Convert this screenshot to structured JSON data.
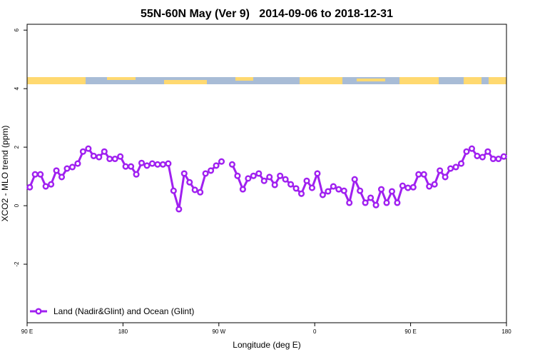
{
  "chart_data": {
    "type": "line",
    "title": "55N-60N May (Ver 9)   2014-09-06 to 2018-12-31",
    "x_label": "Longitude (deg E)",
    "y_label": "XCO2 - MLO trend (ppm)",
    "xlim": [
      90,
      540
    ],
    "ylim": [
      -4,
      6.2
    ],
    "xticks": [
      {
        "value": 90,
        "label": "90 E"
      },
      180,
      {
        "value": 270,
        "label": "90 W"
      },
      {
        "value": 360,
        "label": "0"
      },
      {
        "value": 450,
        "label": "90 E"
      },
      {
        "value": 540,
        "label": "180"
      }
    ],
    "yticks": [
      -2,
      0,
      2,
      4,
      6
    ],
    "legend": "bottom-left",
    "x": [
      92.5,
      97.5,
      102.5,
      107.5,
      112.5,
      117.5,
      122.5,
      127.5,
      132.5,
      137.5,
      142.5,
      147.5,
      152.5,
      157.5,
      162.5,
      167.5,
      172.5,
      177.5,
      182.5,
      187.5,
      192.5,
      197.5,
      202.5,
      207.5,
      212.5,
      217.5,
      222.5,
      227.5,
      232.5,
      237.5,
      242.5,
      247.5,
      252.5,
      257.5,
      262.5,
      267.5,
      272.5,
      277.5,
      282.5,
      287.5,
      292.5,
      297.5,
      302.5,
      307.5,
      312.5,
      317.5,
      322.5,
      327.5,
      332.5,
      337.5,
      342.5,
      347.5,
      352.5,
      357.5,
      362.5,
      367.5,
      372.5,
      377.5,
      382.5,
      387.5,
      392.5,
      397.5,
      402.5,
      407.5,
      412.5,
      417.5,
      422.5,
      427.5,
      432.5,
      437.5,
      442.5,
      447.5,
      452.5,
      457.5,
      462.5,
      467.5,
      472.5,
      477.5,
      482.5,
      487.5,
      492.5,
      497.5,
      502.5,
      507.5,
      512.5,
      517.5,
      522.5,
      527.5,
      532.5,
      537.5
    ],
    "series": [
      {
        "name": "Land (Nadir&Glint) and Ocean (Glint)",
        "color": "#a020f0",
        "values": [
          0.63,
          1.07,
          1.07,
          0.66,
          0.73,
          1.2,
          0.98,
          1.27,
          1.32,
          1.44,
          1.85,
          1.95,
          1.7,
          1.66,
          1.85,
          1.6,
          1.6,
          1.68,
          1.34,
          1.34,
          1.07,
          1.46,
          1.37,
          1.44,
          1.41,
          1.41,
          1.44,
          0.51,
          -0.12,
          1.1,
          0.8,
          0.54,
          0.46,
          1.1,
          1.2,
          1.37,
          1.51,
          null,
          1.41,
          1.02,
          0.56,
          0.93,
          1.02,
          1.1,
          0.85,
          0.98,
          0.71,
          1.02,
          0.9,
          0.73,
          0.59,
          0.41,
          0.85,
          0.61,
          1.1,
          0.37,
          0.49,
          0.66,
          0.56,
          0.51,
          0.1,
          0.9,
          0.51,
          0.1,
          0.27,
          0.02,
          0.56,
          0.1,
          0.49,
          0.1,
          0.68,
          0.61,
          0.63,
          1.07,
          1.07,
          0.66,
          0.73,
          1.2,
          0.98,
          1.27,
          1.32,
          1.44,
          1.85,
          1.95,
          1.7,
          1.66,
          1.85,
          1.6,
          1.6,
          1.68
        ]
      }
    ]
  }
}
